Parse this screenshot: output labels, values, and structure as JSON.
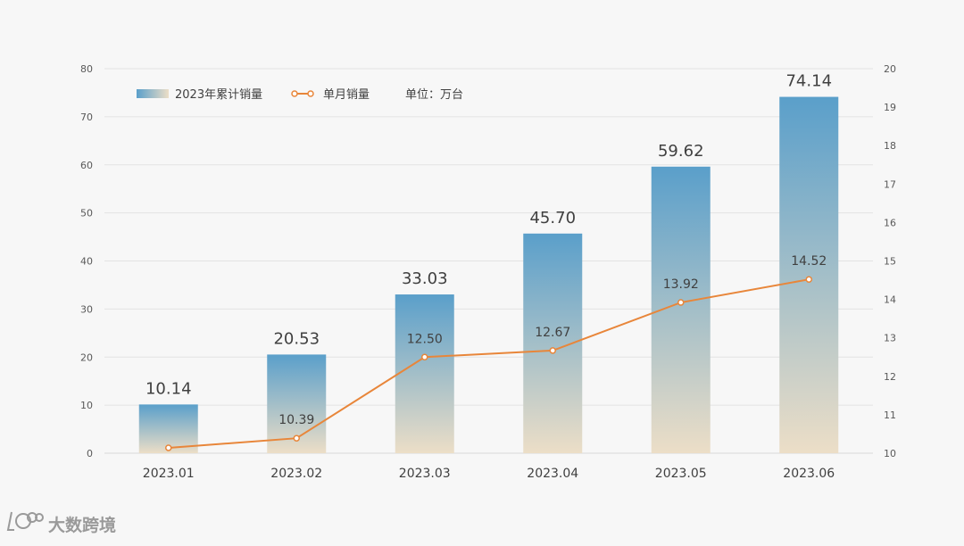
{
  "chart_data": {
    "type": "bar",
    "categories": [
      "2023.01",
      "2023.02",
      "2023.03",
      "2023.04",
      "2023.05",
      "2023.06"
    ],
    "series": [
      {
        "name": "2023年累计销量",
        "type": "bar",
        "axis": "left",
        "values": [
          10.14,
          20.53,
          33.03,
          45.7,
          59.62,
          74.14
        ],
        "labels": [
          "10.14",
          "20.53",
          "33.03",
          "45.70",
          "59.62",
          "74.14"
        ]
      },
      {
        "name": "单月销量",
        "type": "line",
        "axis": "right",
        "values": [
          10.14,
          10.39,
          12.5,
          12.67,
          13.92,
          14.52
        ],
        "labels": [
          "",
          "10.39",
          "12.50",
          "12.67",
          "13.92",
          "14.52"
        ]
      }
    ],
    "unit_note": "单位：万台",
    "ylim_left": [
      0,
      80
    ],
    "yticks_left": [
      0,
      10,
      20,
      30,
      40,
      50,
      60,
      70,
      80
    ],
    "ylim_right": [
      10,
      20
    ],
    "yticks_right": [
      10,
      11,
      12,
      13,
      14,
      15,
      16,
      17,
      18,
      19,
      20
    ],
    "grid": true,
    "legend_position": "top-left",
    "colors": {
      "bar_top": "#5a9fca",
      "bar_bottom": "#ecdec7",
      "line": "#e8863a",
      "marker_fill": "#ffffff",
      "grid": "#e3e3e3",
      "axis": "#d9d9d9"
    }
  },
  "watermark": {
    "text": "大数跨境",
    "icon": "logo-icon"
  }
}
